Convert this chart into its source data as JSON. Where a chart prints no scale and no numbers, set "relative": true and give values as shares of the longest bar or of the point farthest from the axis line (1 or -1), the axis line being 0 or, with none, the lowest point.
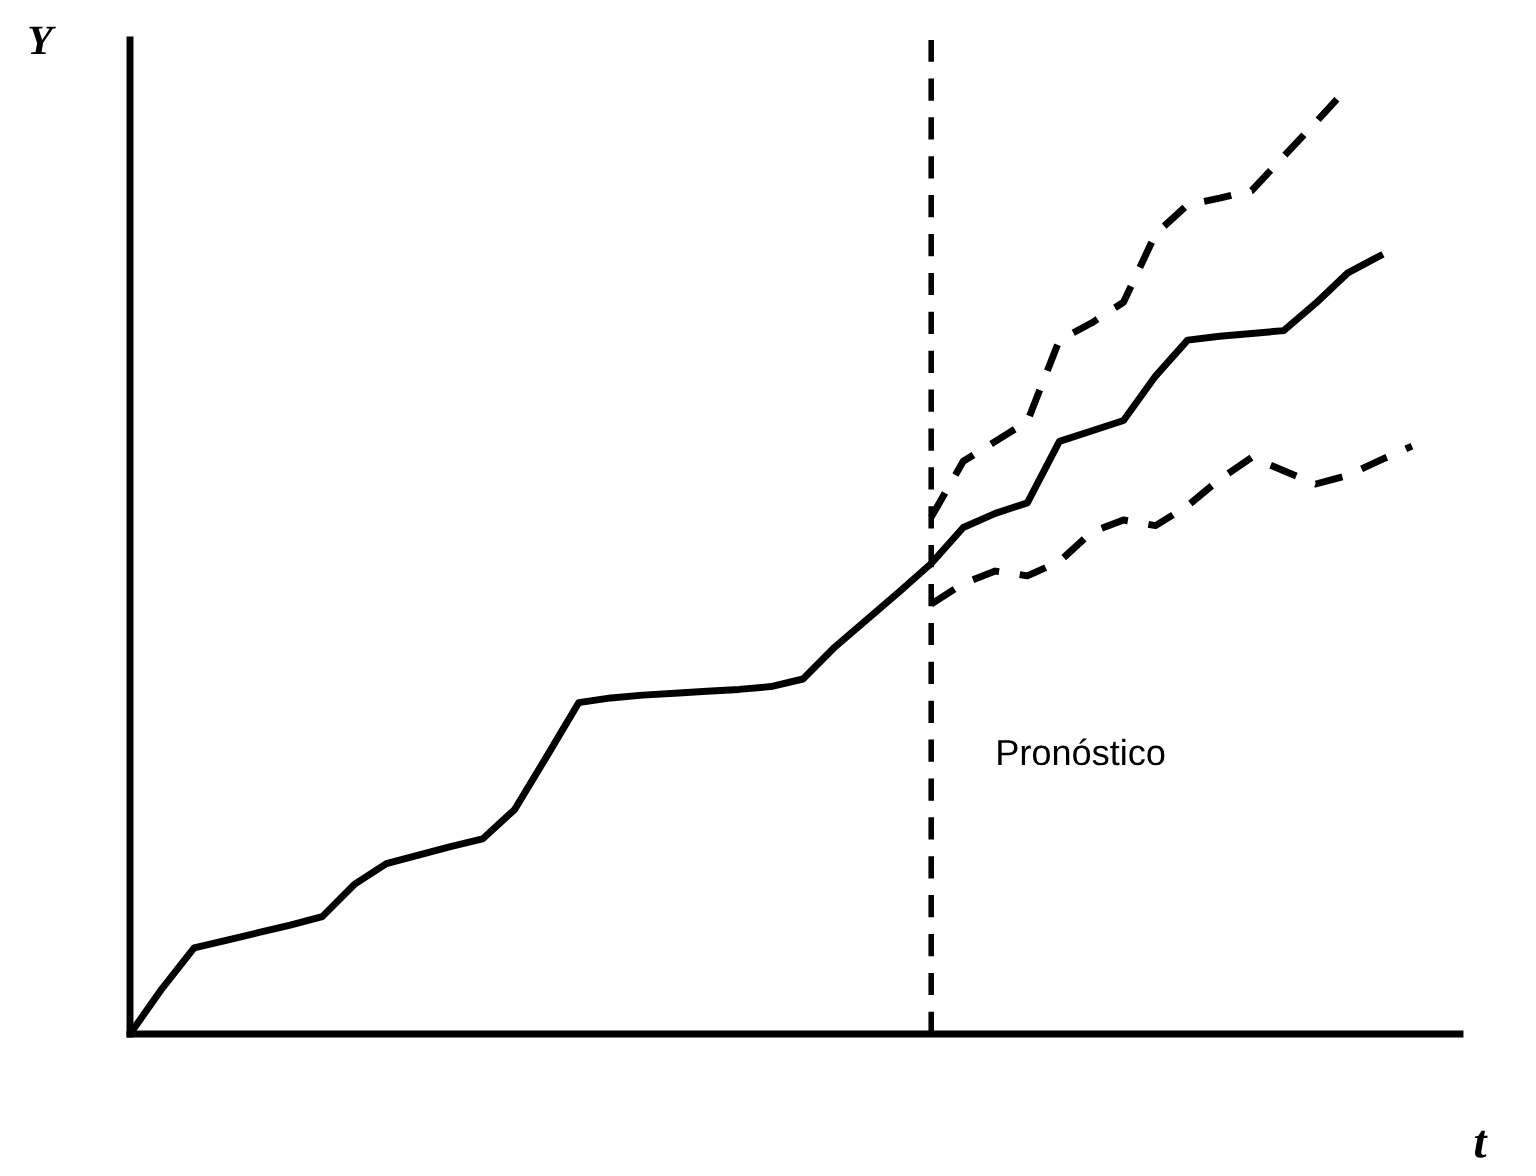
{
  "chart_data": {
    "type": "line",
    "relative": true,
    "xlabel": "t",
    "ylabel": "Y",
    "categories": [
      null,
      null,
      null,
      null,
      null,
      null,
      null,
      null,
      null,
      null,
      null,
      null,
      null,
      null,
      null,
      null,
      null,
      null,
      null,
      null,
      null,
      null,
      null,
      null,
      null,
      null,
      null,
      null,
      null,
      null,
      null,
      null,
      null,
      null,
      null,
      null,
      null,
      null,
      null,
      null,
      null
    ],
    "series": [
      {
        "color": "#000000",
        "line_style": "solid",
        "values": [
          0,
          0.048,
          0.091,
          0.099,
          0.107,
          0.115,
          0.124,
          0.158,
          0.18,
          0.189,
          0.198,
          0.206,
          0.237,
          0.293,
          0.35,
          0.355,
          0.358,
          0.36,
          0.362,
          0.364,
          0.367,
          0.375,
          0.409,
          0.438,
          0.467,
          0.497,
          0.535,
          0.55,
          0.561,
          0.626,
          0.637,
          0.648,
          0.695,
          0.733,
          0.737,
          0.74,
          0.743,
          0.772,
          0.804,
          0.822,
          null
        ]
      },
      {
        "color": "#000000",
        "line_style": "dashed",
        "values": [
          null,
          null,
          null,
          null,
          null,
          null,
          null,
          null,
          null,
          null,
          null,
          null,
          null,
          null,
          null,
          null,
          null,
          null,
          null,
          null,
          null,
          null,
          null,
          null,
          null,
          0.546,
          0.605,
          0.626,
          0.647,
          0.733,
          0.751,
          0.773,
          0.845,
          0.876,
          0.883,
          0.891,
          0.927,
          0.963,
          1,
          null,
          null
        ]
      },
      {
        "color": "#000000",
        "line_style": "dashed",
        "values": [
          null,
          null,
          null,
          null,
          null,
          null,
          null,
          null,
          null,
          null,
          null,
          null,
          null,
          null,
          null,
          null,
          null,
          null,
          null,
          null,
          null,
          null,
          null,
          null,
          null,
          0.454,
          0.476,
          0.489,
          0.484,
          0.499,
          0.53,
          0.543,
          0.537,
          0.558,
          0.586,
          0.609,
          0.595,
          0.581,
          0.59,
          0.606,
          0.621
        ]
      }
    ],
    "annotations": [
      "Pronóstico"
    ]
  }
}
